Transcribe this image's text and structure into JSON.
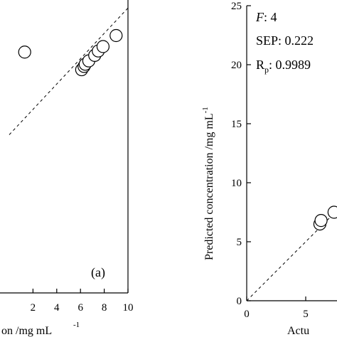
{
  "chart_data": [
    {
      "type": "scatter",
      "panel_label": "(a)",
      "xlabel_visible": "on /mg mL",
      "xlabel_sup": "-1",
      "xlim": [
        0,
        10
      ],
      "xticks": [
        "2",
        "4",
        "6",
        "8",
        "10"
      ],
      "points": [
        {
          "x": 1.3,
          "y": 7.5
        },
        {
          "x": 6.1,
          "y": 5.9
        },
        {
          "x": 6.3,
          "y": 6.2
        },
        {
          "x": 6.4,
          "y": 6.4
        },
        {
          "x": 6.7,
          "y": 6.7
        },
        {
          "x": 7.2,
          "y": 7.2
        },
        {
          "x": 7.5,
          "y": 7.6
        },
        {
          "x": 7.9,
          "y": 8.0
        },
        {
          "x": 9.0,
          "y": 9.0
        }
      ],
      "reference_line": "y = x (dashed)",
      "grid": false
    },
    {
      "type": "scatter",
      "ylabel": "Predicted concentration /mg mL",
      "ylabel_sup": "-1",
      "xlabel_visible": "Actu",
      "ylim": [
        0,
        25
      ],
      "yticks": [
        "0",
        "5",
        "10",
        "15",
        "20",
        "25"
      ],
      "xticks": [
        "0",
        "5"
      ],
      "annotations": {
        "f_label": "F",
        "f_value": ": 4",
        "sep": "SEP: 0.222",
        "rp_main": "R",
        "rp_sub": "p",
        "rp_value": ": 0.9989"
      },
      "points": [
        {
          "x": 6.2,
          "y": 6.5
        },
        {
          "x": 6.3,
          "y": 6.8
        },
        {
          "x": 7.4,
          "y": 7.5
        }
      ],
      "reference_line": "y = x (dashed)",
      "grid": false
    }
  ]
}
